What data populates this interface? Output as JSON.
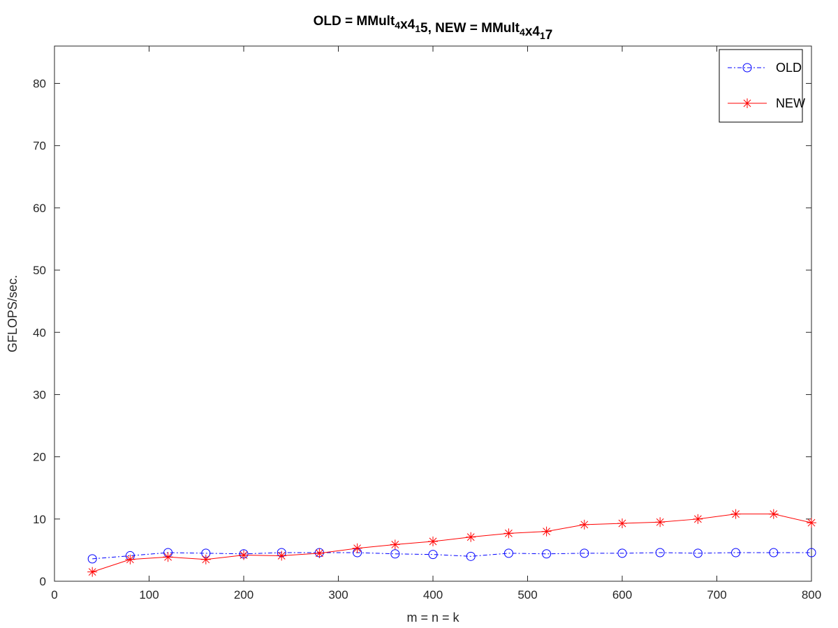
{
  "chart_data": {
    "type": "line",
    "title_parts": [
      {
        "text": "OLD = MMult",
        "sub": false
      },
      {
        "text": "4",
        "sub": true
      },
      {
        "text": "x4",
        "sub": false
      },
      {
        "text": "1",
        "sub": true
      },
      {
        "text": "5, NEW = MMult",
        "sub": false
      },
      {
        "text": "4",
        "sub": true
      },
      {
        "text": "x4",
        "sub": false
      },
      {
        "text": "1",
        "sub": true
      },
      {
        "text": "7",
        "sub": false
      }
    ],
    "xlabel": "m = n = k",
    "ylabel": "GFLOPS/sec.",
    "xlim": [
      0,
      800
    ],
    "ylim": [
      0,
      86
    ],
    "xticks": [
      0,
      100,
      200,
      300,
      400,
      500,
      600,
      700,
      800
    ],
    "yticks": [
      0,
      10,
      20,
      30,
      40,
      50,
      60,
      70,
      80
    ],
    "grid": false,
    "legend_position": "top-right",
    "x": [
      40,
      80,
      120,
      160,
      200,
      240,
      280,
      320,
      360,
      400,
      440,
      480,
      520,
      560,
      600,
      640,
      680,
      720,
      760,
      800
    ],
    "series": [
      {
        "name": "OLD",
        "color": "#0000ff",
        "marker": "circle",
        "line_style": "dash-dot",
        "values": [
          3.6,
          4.1,
          4.6,
          4.5,
          4.4,
          4.6,
          4.6,
          4.6,
          4.4,
          4.3,
          4.0,
          4.5,
          4.4,
          4.5,
          4.5,
          4.6,
          4.5,
          4.6,
          4.6,
          4.6
        ]
      },
      {
        "name": "NEW",
        "color": "#ff0000",
        "marker": "asterisk",
        "line_style": "solid",
        "values": [
          1.5,
          3.5,
          3.9,
          3.5,
          4.2,
          4.1,
          4.5,
          5.3,
          5.9,
          6.4,
          7.1,
          7.7,
          8.0,
          9.1,
          9.3,
          9.5,
          10.0,
          10.8,
          10.8,
          9.4
        ]
      }
    ]
  }
}
